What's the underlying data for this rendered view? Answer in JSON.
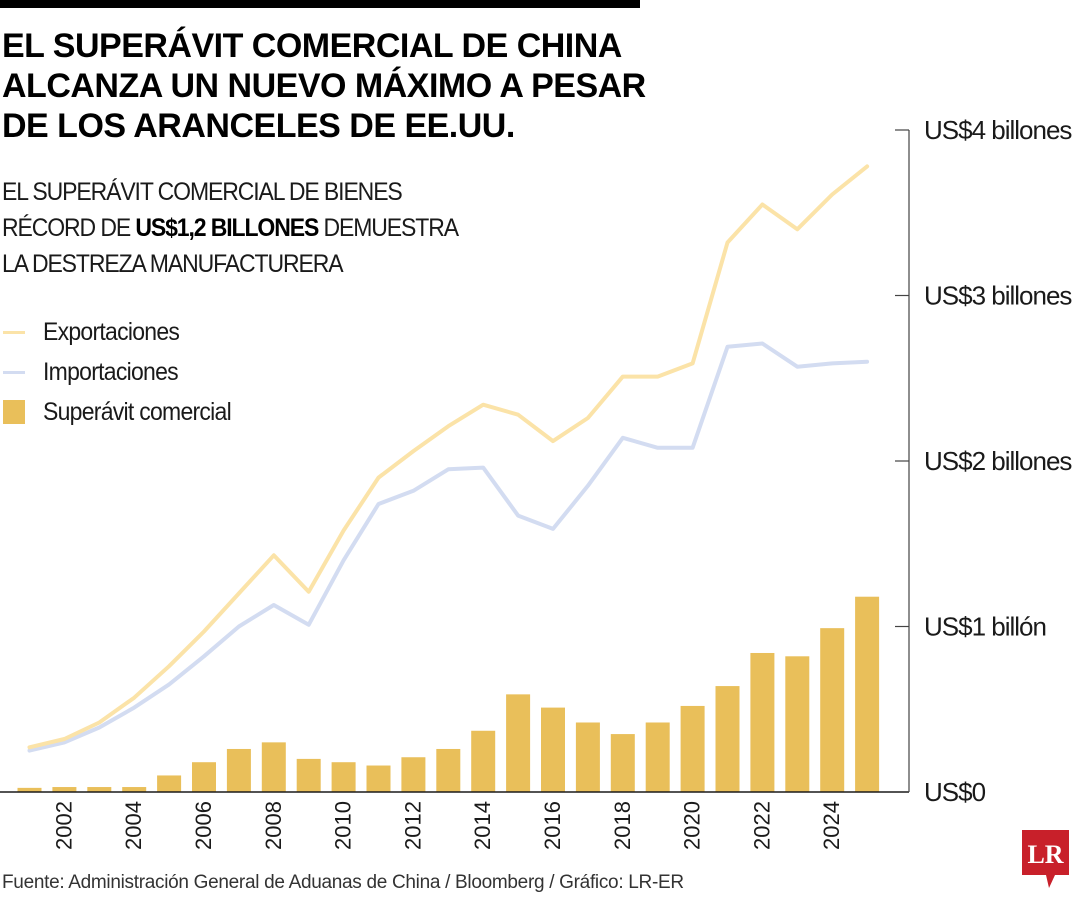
{
  "header": {
    "title": "EL SUPERÁVIT COMERCIAL DE CHINA ALCANZA UN NUEVO MÁXIMO A PESAR DE LOS ARANCELES DE EE.UU.",
    "subtitle_pre": "EL SUPERÁVIT COMERCIAL DE BIENES RÉCORD DE ",
    "subtitle_bold": "US$1,2 BILLONES",
    "subtitle_post": " DEMUESTRA LA DESTREZA MANUFACTURERA"
  },
  "legend": [
    {
      "label": "Exportaciones",
      "type": "line",
      "color": "#fbe3a8"
    },
    {
      "label": "Importaciones",
      "type": "line",
      "color": "#d3dcf1"
    },
    {
      "label": "Superávit comercial",
      "type": "bar",
      "color": "#e9bf5a"
    }
  ],
  "source": "Fuente: Administración General de Aduanas de China / Bloomberg / Gráfico: LR-ER",
  "logo": {
    "text": "LR",
    "color": "#c8202a"
  },
  "chart_data": {
    "type": "bar+line",
    "title": "El superávit comercial de China alcanza un nuevo máximo a pesar de los aranceles de EE.UU.",
    "xlabel": "",
    "ylabel": "",
    "unit": "billones de US$ (trillones)",
    "ylim": [
      0,
      4
    ],
    "y_ticks": [
      {
        "value": 4,
        "label": "US$4 billones"
      },
      {
        "value": 3,
        "label": "US$3 billones"
      },
      {
        "value": 2,
        "label": "US$2 billones"
      },
      {
        "value": 1,
        "label": "US$1 billón"
      },
      {
        "value": 0,
        "label": "US$0"
      }
    ],
    "y_axis_position": "right",
    "grid": false,
    "legend_position": "top-left",
    "x": [
      2001,
      2002,
      2003,
      2004,
      2005,
      2006,
      2007,
      2008,
      2009,
      2010,
      2011,
      2012,
      2013,
      2014,
      2015,
      2016,
      2017,
      2018,
      2019,
      2020,
      2021,
      2022,
      2023,
      2024,
      2025
    ],
    "x_tick_labels": [
      "2002",
      "2004",
      "2006",
      "2008",
      "2010",
      "2012",
      "2014",
      "2016",
      "2018",
      "2020",
      "2022",
      "2024"
    ],
    "series": [
      {
        "name": "Exportaciones",
        "type": "line",
        "color": "#fbe3a8",
        "values": [
          0.27,
          0.32,
          0.42,
          0.57,
          0.76,
          0.97,
          1.2,
          1.43,
          1.21,
          1.58,
          1.9,
          2.06,
          2.21,
          2.34,
          2.28,
          2.12,
          2.26,
          2.51,
          2.51,
          2.59,
          3.32,
          3.55,
          3.4,
          3.61,
          3.78
        ]
      },
      {
        "name": "Importaciones",
        "type": "line",
        "color": "#d3dcf1",
        "values": [
          0.25,
          0.3,
          0.39,
          0.51,
          0.65,
          0.82,
          1.0,
          1.13,
          1.01,
          1.4,
          1.74,
          1.82,
          1.95,
          1.96,
          1.67,
          1.59,
          1.85,
          2.14,
          2.08,
          2.08,
          2.69,
          2.71,
          2.57,
          2.59,
          2.6
        ]
      },
      {
        "name": "Superávit comercial",
        "type": "bar",
        "color": "#e9bf5a",
        "values": [
          0.025,
          0.03,
          0.03,
          0.03,
          0.1,
          0.18,
          0.26,
          0.3,
          0.2,
          0.18,
          0.16,
          0.21,
          0.26,
          0.37,
          0.59,
          0.51,
          0.42,
          0.35,
          0.42,
          0.52,
          0.64,
          0.84,
          0.82,
          0.99,
          1.18
        ]
      }
    ]
  }
}
